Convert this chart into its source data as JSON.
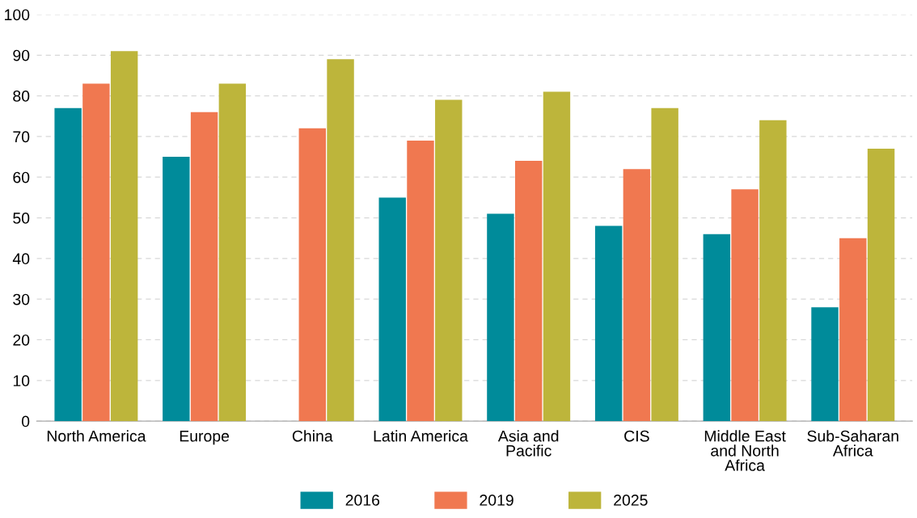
{
  "chart_data": {
    "type": "bar",
    "categories": [
      "North America",
      "Europe",
      "China",
      "Latin America",
      "Asia and\nPacific",
      "CIS",
      "Middle East\nand North\nAfrica",
      "Sub-Saharan\nAfrica"
    ],
    "series": [
      {
        "name": "2016",
        "color": "#008b9a",
        "values": [
          77,
          65,
          null,
          55,
          51,
          48,
          46,
          28
        ]
      },
      {
        "name": "2019",
        "color": "#f07850",
        "values": [
          83,
          76,
          72,
          69,
          64,
          62,
          57,
          45
        ]
      },
      {
        "name": "2025",
        "color": "#bdb53b",
        "values": [
          91,
          83,
          89,
          79,
          81,
          77,
          74,
          67
        ]
      }
    ],
    "ylim": [
      0,
      100
    ],
    "yticks": [
      0,
      10,
      20,
      30,
      40,
      50,
      60,
      70,
      80,
      90,
      100
    ],
    "grid": "y",
    "legend": "bottom"
  }
}
